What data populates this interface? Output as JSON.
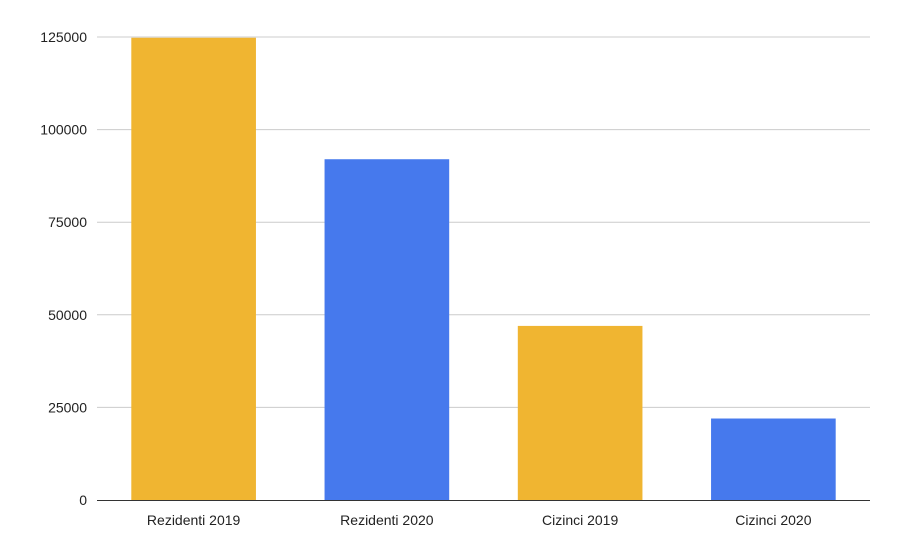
{
  "chart_data": {
    "type": "bar",
    "title": "",
    "xlabel": "",
    "ylabel": "",
    "categories": [
      "Rezidenti 2019",
      "Rezidenti 2020",
      "Cizinci 2019",
      "Cizinci 2020"
    ],
    "values": [
      124800,
      92000,
      47000,
      22000
    ],
    "bar_colors": [
      "#f0b531",
      "#4679ed",
      "#f0b531",
      "#4679ed"
    ],
    "ylim": [
      0,
      125000
    ],
    "yticks": [
      0,
      25000,
      50000,
      75000,
      100000,
      125000
    ],
    "ytick_labels": [
      "0",
      "25000",
      "50000",
      "75000",
      "100000",
      "125000"
    ],
    "grid": true,
    "legend": "none"
  }
}
